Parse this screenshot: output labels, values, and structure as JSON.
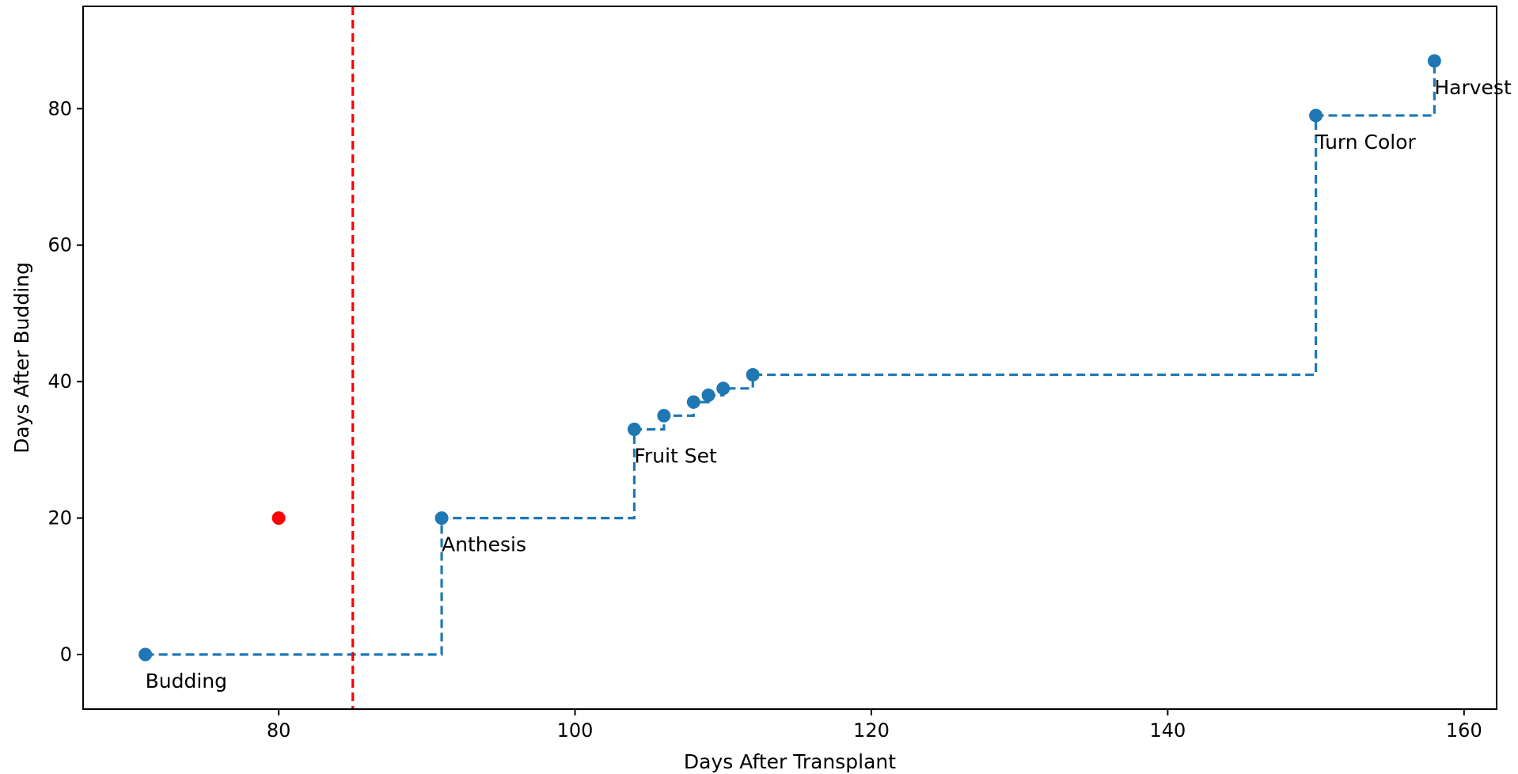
{
  "chart_data": {
    "type": "line",
    "step": "post",
    "title": "",
    "xlabel": "Days After Transplant",
    "ylabel": "Days After Budding",
    "xlim": [
      66.8,
      162.2
    ],
    "ylim": [
      -8,
      95
    ],
    "xticks": [
      80,
      100,
      120,
      140,
      160
    ],
    "yticks": [
      0,
      20,
      40,
      60,
      80
    ],
    "grid": false,
    "series": [
      {
        "line_style": "dashed",
        "color": "#1f77b4",
        "points": [
          {
            "x": 71,
            "y": 0,
            "label": "Budding"
          },
          {
            "x": 91,
            "y": 20,
            "label": "Anthesis"
          },
          {
            "x": 104,
            "y": 33,
            "label": "Fruit Set"
          },
          {
            "x": 106,
            "y": 35,
            "label": ""
          },
          {
            "x": 108,
            "y": 37,
            "label": ""
          },
          {
            "x": 109,
            "y": 38,
            "label": ""
          },
          {
            "x": 110,
            "y": 39,
            "label": ""
          },
          {
            "x": 112,
            "y": 41,
            "label": ""
          },
          {
            "x": 150,
            "y": 79,
            "label": "Turn Color"
          },
          {
            "x": 158,
            "y": 87,
            "label": "Harvest"
          }
        ]
      }
    ],
    "highlight_point": {
      "x": 80,
      "y": 20,
      "color": "#ff0000"
    },
    "vertical_line": {
      "x": 85,
      "color": "#ff0000",
      "line_style": "dashed"
    }
  }
}
